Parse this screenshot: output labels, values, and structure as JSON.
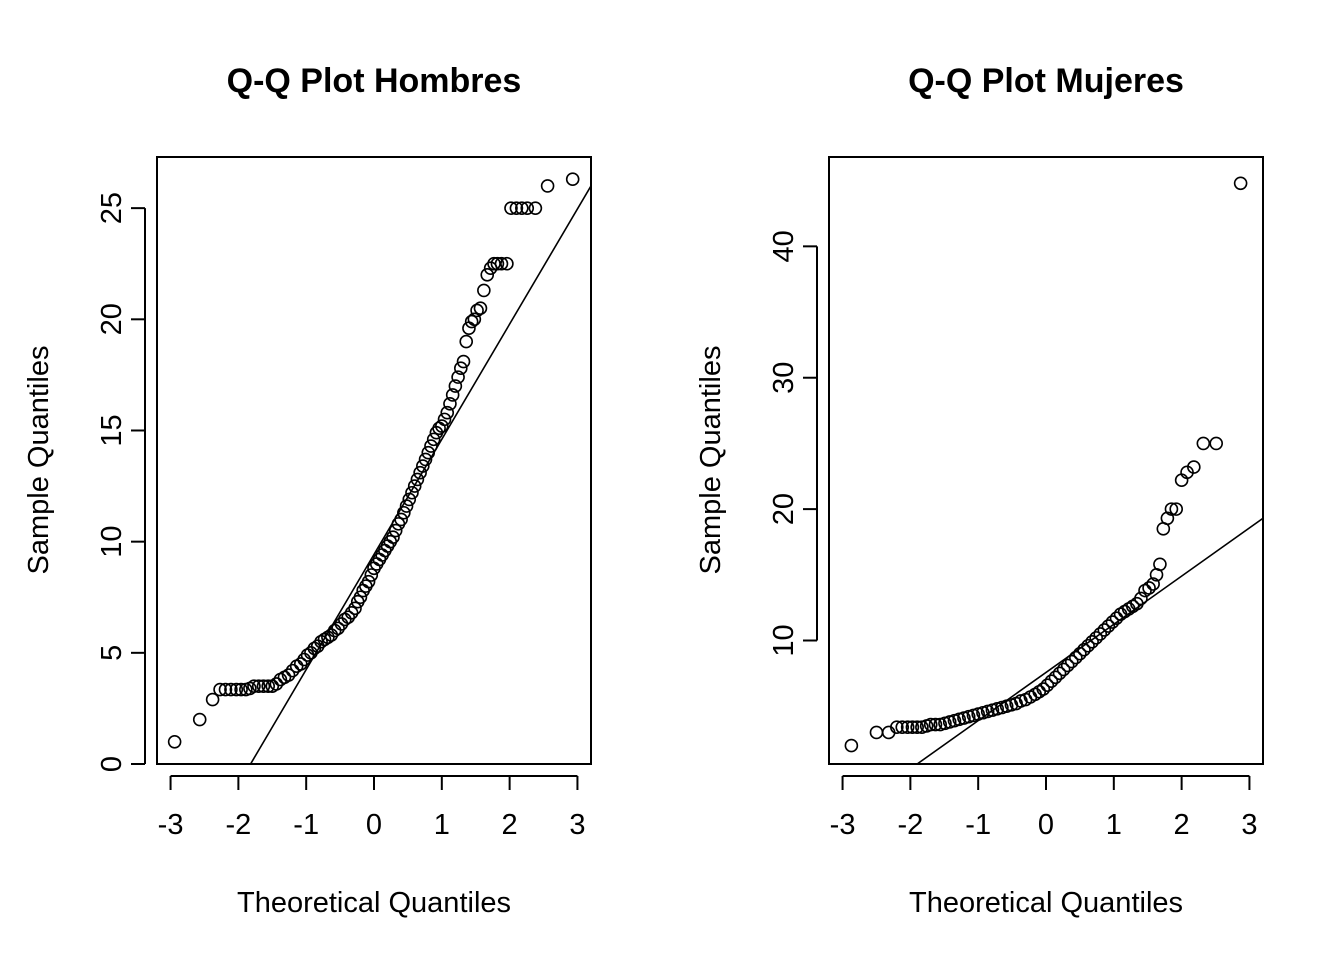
{
  "chart_data": [
    {
      "type": "scatter",
      "title": "Q-Q Plot Hombres",
      "xlabel": "Theoretical Quantiles",
      "ylabel": "Sample Quantiles",
      "xlim": [
        -3.2,
        3.2
      ],
      "ylim": [
        0,
        27.3
      ],
      "xticks": [
        -3,
        -2,
        -1,
        0,
        1,
        2,
        3
      ],
      "yticks": [
        0,
        5,
        10,
        15,
        20,
        25
      ],
      "grid": false,
      "reference_line": {
        "x1": -1.82,
        "y1": 0,
        "x2": 3.2,
        "y2": 26.0
      },
      "points": [
        [
          -2.94,
          1.0
        ],
        [
          -2.57,
          2.0
        ],
        [
          -2.38,
          2.9
        ],
        [
          -2.27,
          3.35
        ],
        [
          -2.19,
          3.35
        ],
        [
          -2.11,
          3.35
        ],
        [
          -2.03,
          3.35
        ],
        [
          -1.96,
          3.35
        ],
        [
          -1.89,
          3.35
        ],
        [
          -1.83,
          3.4
        ],
        [
          -1.77,
          3.5
        ],
        [
          -1.7,
          3.5
        ],
        [
          -1.63,
          3.5
        ],
        [
          -1.56,
          3.5
        ],
        [
          -1.5,
          3.5
        ],
        [
          -1.44,
          3.6
        ],
        [
          -1.38,
          3.8
        ],
        [
          -1.32,
          3.9
        ],
        [
          -1.26,
          4.0
        ],
        [
          -1.2,
          4.2
        ],
        [
          -1.14,
          4.4
        ],
        [
          -1.08,
          4.5
        ],
        [
          -1.03,
          4.7
        ],
        [
          -0.98,
          4.9
        ],
        [
          -0.93,
          5.0
        ],
        [
          -0.88,
          5.2
        ],
        [
          -0.83,
          5.3
        ],
        [
          -0.78,
          5.5
        ],
        [
          -0.73,
          5.6
        ],
        [
          -0.68,
          5.7
        ],
        [
          -0.63,
          5.8
        ],
        [
          -0.58,
          6.0
        ],
        [
          -0.53,
          6.1
        ],
        [
          -0.48,
          6.3
        ],
        [
          -0.43,
          6.5
        ],
        [
          -0.38,
          6.6
        ],
        [
          -0.33,
          6.8
        ],
        [
          -0.28,
          7.0
        ],
        [
          -0.24,
          7.3
        ],
        [
          -0.2,
          7.5
        ],
        [
          -0.16,
          7.8
        ],
        [
          -0.12,
          8.0
        ],
        [
          -0.08,
          8.2
        ],
        [
          -0.04,
          8.5
        ],
        [
          0.0,
          8.8
        ],
        [
          0.04,
          9.0
        ],
        [
          0.08,
          9.2
        ],
        [
          0.12,
          9.4
        ],
        [
          0.16,
          9.6
        ],
        [
          0.2,
          9.8
        ],
        [
          0.24,
          10.0
        ],
        [
          0.28,
          10.2
        ],
        [
          0.32,
          10.5
        ],
        [
          0.36,
          10.8
        ],
        [
          0.4,
          11.0
        ],
        [
          0.44,
          11.3
        ],
        [
          0.48,
          11.6
        ],
        [
          0.52,
          11.9
        ],
        [
          0.56,
          12.2
        ],
        [
          0.6,
          12.5
        ],
        [
          0.64,
          12.8
        ],
        [
          0.68,
          13.1
        ],
        [
          0.72,
          13.4
        ],
        [
          0.76,
          13.7
        ],
        [
          0.8,
          14.0
        ],
        [
          0.84,
          14.3
        ],
        [
          0.88,
          14.6
        ],
        [
          0.92,
          14.9
        ],
        [
          0.96,
          15.1
        ],
        [
          1.0,
          15.2
        ],
        [
          1.04,
          15.5
        ],
        [
          1.08,
          15.8
        ],
        [
          1.12,
          16.2
        ],
        [
          1.16,
          16.6
        ],
        [
          1.2,
          17.0
        ],
        [
          1.24,
          17.4
        ],
        [
          1.28,
          17.8
        ],
        [
          1.32,
          18.1
        ],
        [
          1.36,
          19.0
        ],
        [
          1.4,
          19.6
        ],
        [
          1.44,
          19.9
        ],
        [
          1.48,
          20.0
        ],
        [
          1.52,
          20.4
        ],
        [
          1.57,
          20.5
        ],
        [
          1.62,
          21.3
        ],
        [
          1.67,
          22.0
        ],
        [
          1.72,
          22.3
        ],
        [
          1.77,
          22.5
        ],
        [
          1.82,
          22.5
        ],
        [
          1.88,
          22.5
        ],
        [
          1.96,
          22.5
        ],
        [
          2.02,
          25.0
        ],
        [
          2.1,
          25.0
        ],
        [
          2.18,
          25.0
        ],
        [
          2.26,
          25.0
        ],
        [
          2.38,
          25.0
        ],
        [
          2.56,
          26.0
        ],
        [
          2.93,
          26.3
        ]
      ]
    },
    {
      "type": "scatter",
      "title": "Q-Q Plot Mujeres",
      "xlabel": "Theoretical Quantiles",
      "ylabel": "Sample Quantiles",
      "xlim": [
        -3.2,
        3.2
      ],
      "ylim": [
        0.6,
        46.8
      ],
      "xticks": [
        -3,
        -2,
        -1,
        0,
        1,
        2,
        3
      ],
      "yticks": [
        10,
        20,
        30,
        40
      ],
      "grid": false,
      "reference_line": {
        "x1": -1.9,
        "y1": 0.6,
        "x2": 3.2,
        "y2": 19.3
      },
      "points": [
        [
          -2.87,
          2.0
        ],
        [
          -2.5,
          3.0
        ],
        [
          -2.32,
          3.0
        ],
        [
          -2.2,
          3.4
        ],
        [
          -2.12,
          3.4
        ],
        [
          -2.04,
          3.4
        ],
        [
          -1.97,
          3.4
        ],
        [
          -1.9,
          3.4
        ],
        [
          -1.83,
          3.4
        ],
        [
          -1.76,
          3.5
        ],
        [
          -1.7,
          3.6
        ],
        [
          -1.63,
          3.6
        ],
        [
          -1.56,
          3.6
        ],
        [
          -1.49,
          3.7
        ],
        [
          -1.42,
          3.8
        ],
        [
          -1.35,
          3.9
        ],
        [
          -1.28,
          4.0
        ],
        [
          -1.21,
          4.1
        ],
        [
          -1.14,
          4.2
        ],
        [
          -1.07,
          4.3
        ],
        [
          -1.0,
          4.4
        ],
        [
          -0.93,
          4.5
        ],
        [
          -0.86,
          4.6
        ],
        [
          -0.79,
          4.7
        ],
        [
          -0.72,
          4.8
        ],
        [
          -0.65,
          4.9
        ],
        [
          -0.58,
          5.0
        ],
        [
          -0.51,
          5.1
        ],
        [
          -0.44,
          5.2
        ],
        [
          -0.37,
          5.4
        ],
        [
          -0.3,
          5.5
        ],
        [
          -0.23,
          5.7
        ],
        [
          -0.16,
          5.9
        ],
        [
          -0.1,
          6.1
        ],
        [
          -0.04,
          6.3
        ],
        [
          0.02,
          6.6
        ],
        [
          0.08,
          6.9
        ],
        [
          0.14,
          7.2
        ],
        [
          0.2,
          7.5
        ],
        [
          0.26,
          7.8
        ],
        [
          0.32,
          8.1
        ],
        [
          0.38,
          8.4
        ],
        [
          0.44,
          8.7
        ],
        [
          0.5,
          9.0
        ],
        [
          0.56,
          9.3
        ],
        [
          0.62,
          9.6
        ],
        [
          0.68,
          9.9
        ],
        [
          0.74,
          10.2
        ],
        [
          0.8,
          10.5
        ],
        [
          0.86,
          10.8
        ],
        [
          0.92,
          11.1
        ],
        [
          0.98,
          11.4
        ],
        [
          1.04,
          11.7
        ],
        [
          1.1,
          12.0
        ],
        [
          1.16,
          12.2
        ],
        [
          1.22,
          12.4
        ],
        [
          1.28,
          12.6
        ],
        [
          1.34,
          12.8
        ],
        [
          1.4,
          13.2
        ],
        [
          1.46,
          13.8
        ],
        [
          1.52,
          14.0
        ],
        [
          1.58,
          14.3
        ],
        [
          1.63,
          15.0
        ],
        [
          1.68,
          15.8
        ],
        [
          1.73,
          18.5
        ],
        [
          1.79,
          19.3
        ],
        [
          1.85,
          20.0
        ],
        [
          1.92,
          20.0
        ],
        [
          2.0,
          22.2
        ],
        [
          2.08,
          22.8
        ],
        [
          2.18,
          23.2
        ],
        [
          2.32,
          25.0
        ],
        [
          2.51,
          25.0
        ],
        [
          2.87,
          44.8
        ]
      ]
    }
  ]
}
